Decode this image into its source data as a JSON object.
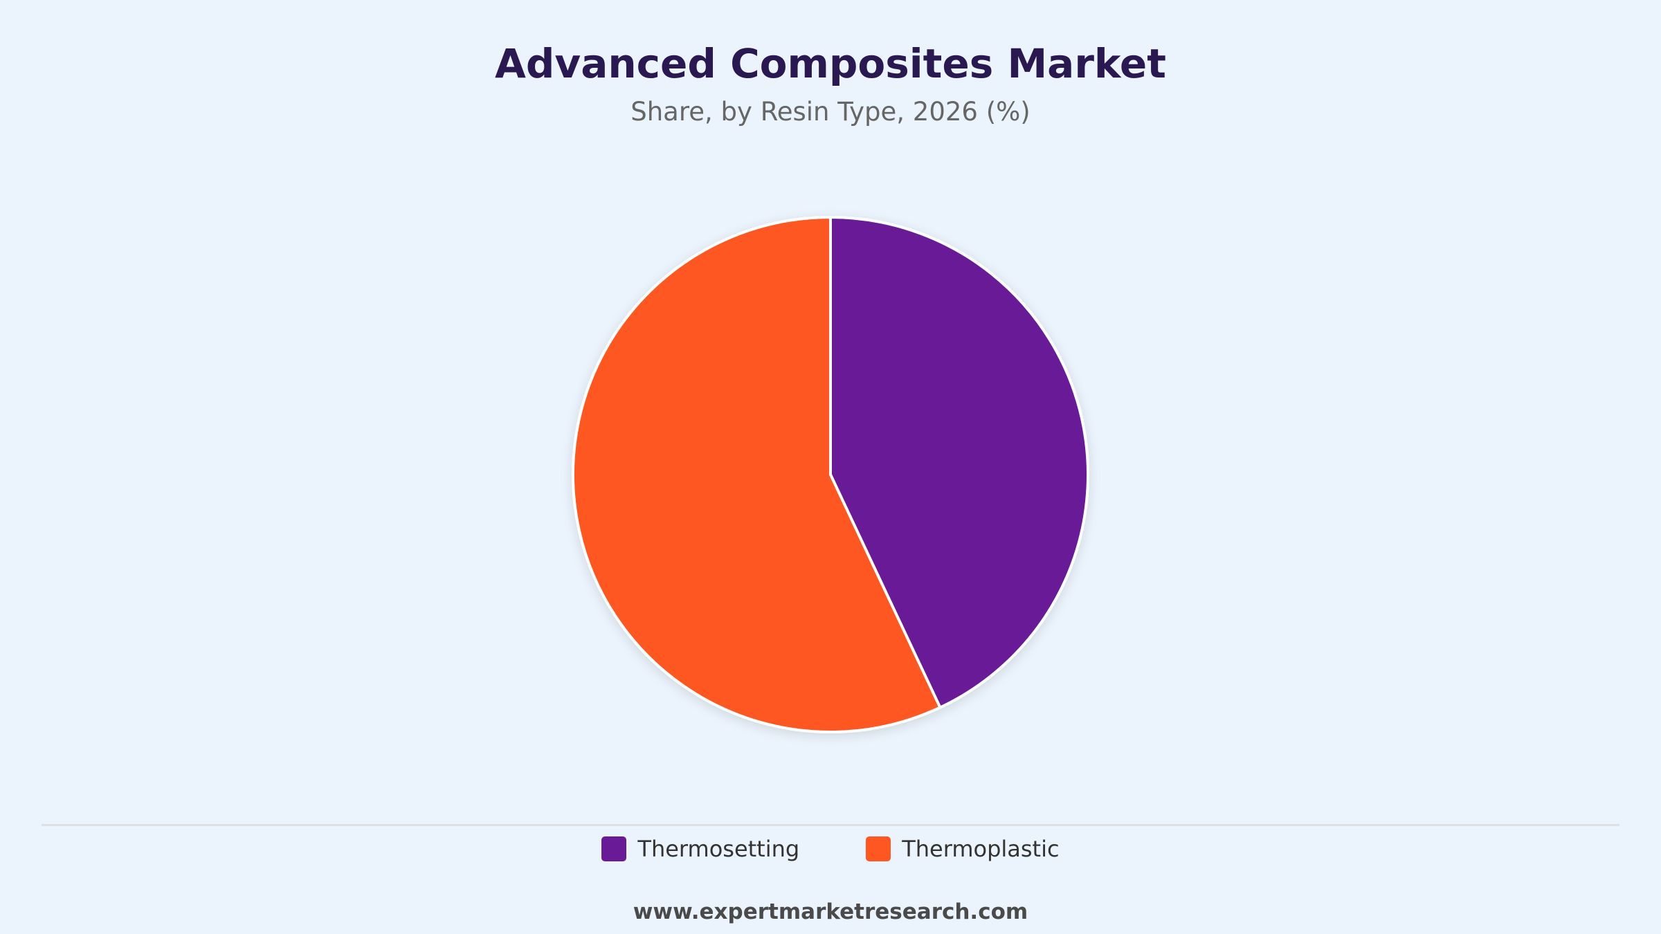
{
  "header": {
    "title": "Advanced Composites Market",
    "subtitle": "Share, by Resin Type, 2026 (%)"
  },
  "footer": {
    "website": "www.expertmarketresearch.com"
  },
  "chart_data": {
    "type": "pie",
    "title": "Advanced Composites Market",
    "subtitle": "Share, by Resin Type, 2026 (%)",
    "categories": [
      "Thermosetting",
      "Thermoplastic"
    ],
    "values": [
      43,
      57
    ],
    "unit": "%",
    "colors": [
      "#681a97",
      "#ff5722"
    ],
    "slice_border_color": "#ffffff",
    "start_angle_deg": 0,
    "direction": "clockwise",
    "legend": {
      "position": "bottom-center",
      "entries": [
        "Thermosetting",
        "Thermoplastic"
      ]
    }
  }
}
